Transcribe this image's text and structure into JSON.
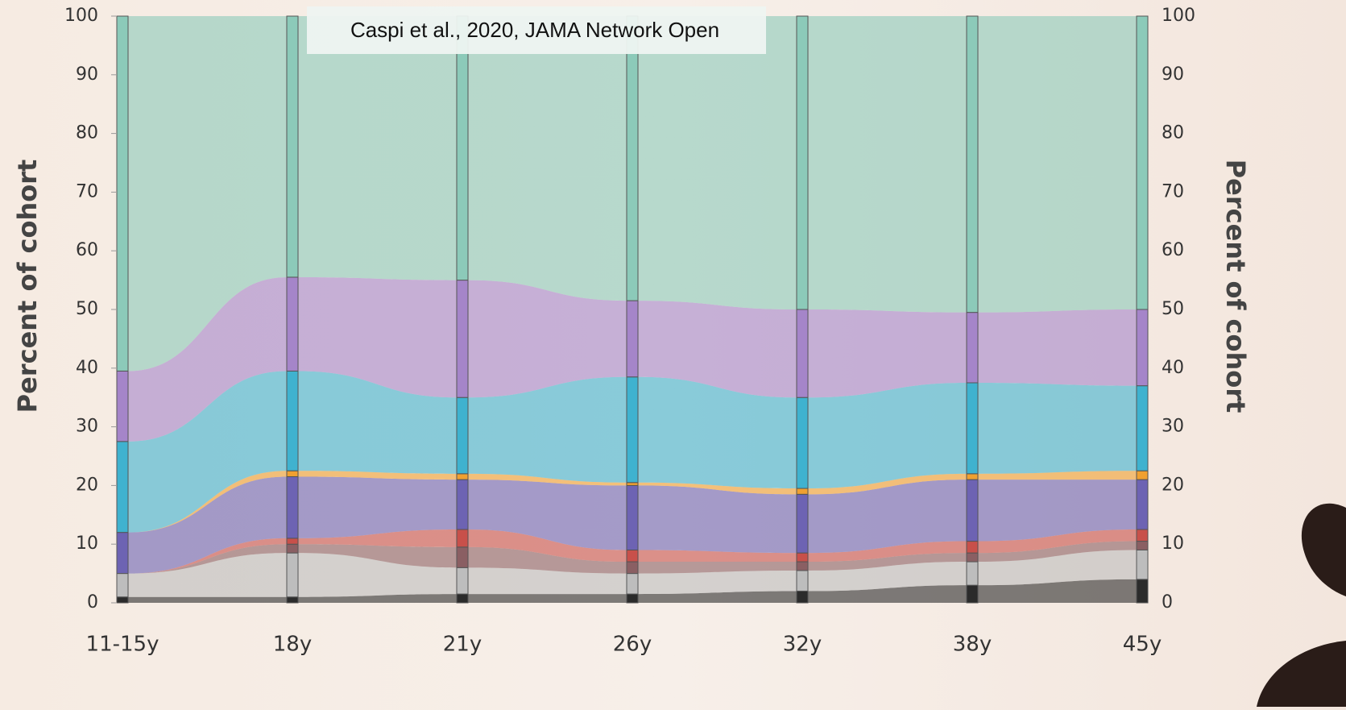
{
  "chart_data": {
    "type": "alluvial",
    "annotation": "Caspi et al., 2020, JAMA Network Open",
    "y_label": "Percent of cohort",
    "y2_label": "Percent of cohort",
    "categories": [
      "11-15y",
      "18y",
      "21y",
      "26y",
      "32y",
      "38y",
      "45y"
    ],
    "ylim": [
      0,
      100
    ],
    "yticks": [
      0,
      10,
      20,
      30,
      40,
      50,
      60,
      70,
      80,
      90,
      100
    ],
    "series": [
      {
        "color": "#2b2b2b",
        "values": [
          1,
          1,
          1.5,
          1.5,
          2,
          3,
          4
        ]
      },
      {
        "color": "#bdbdbd",
        "values": [
          4,
          7.5,
          4.5,
          3.5,
          3.5,
          4,
          5
        ]
      },
      {
        "color": "#8a5f63",
        "values": [
          0,
          1.5,
          3.5,
          2,
          1.5,
          1.5,
          1.5
        ]
      },
      {
        "color": "#c8504a",
        "values": [
          0,
          1,
          3,
          2,
          1.5,
          2,
          2
        ]
      },
      {
        "color": "#6d63b3",
        "values": [
          7,
          10.5,
          8.5,
          11,
          10,
          10.5,
          8.5
        ]
      },
      {
        "color": "#f0a030",
        "values": [
          0,
          1,
          1,
          0.5,
          1,
          1,
          1.5
        ]
      },
      {
        "color": "#3fb2cf",
        "values": [
          15.5,
          17,
          13,
          18,
          15.5,
          15.5,
          14.5
        ]
      },
      {
        "color": "#a585c9",
        "values": [
          12,
          16,
          20,
          13,
          15,
          12,
          13
        ]
      },
      {
        "color": "#8ccab9",
        "values": [
          60.5,
          44.5,
          45,
          48.5,
          50,
          50.5,
          50
        ]
      }
    ]
  }
}
